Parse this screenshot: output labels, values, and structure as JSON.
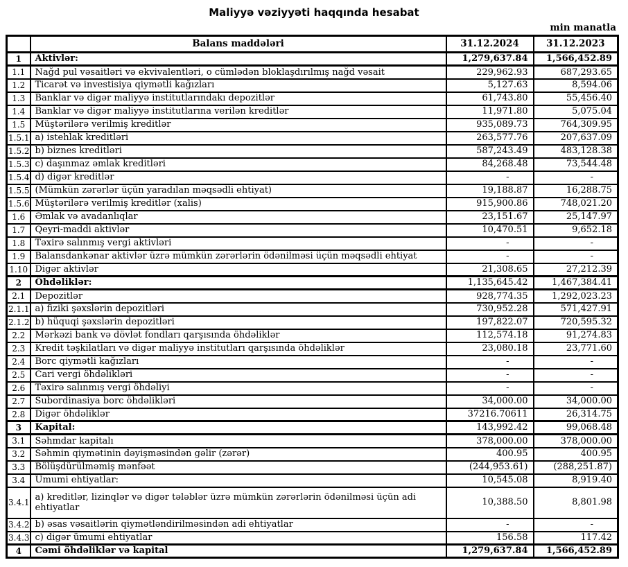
{
  "title": "Maliyyə vəziyyəti haqqında hesabat",
  "unit_note": "min manatla",
  "colors": {
    "text": "#000000",
    "border": "#000000",
    "background": "#ffffff"
  },
  "table": {
    "headers": {
      "num": "",
      "item": "Balans maddələri",
      "col2024": "31.12.2024",
      "col2023": "31.12.2023"
    },
    "rows": [
      {
        "num": "1",
        "item": "Aktivlər:",
        "v2024": "1,279,637.84",
        "v2023": "1,566,452.89",
        "style": "section bold-vals"
      },
      {
        "num": "1.1",
        "item": "Nağd pul vəsaitləri və ekvivalentləri, o cümlədən bloklaşdırılmış nağd vəsait",
        "v2024": "229,962.93",
        "v2023": "687,293.65",
        "style": ""
      },
      {
        "num": "1.2",
        "item": "Ticarət və investisiya qiymətli kağızları",
        "v2024": "5,127.63",
        "v2023": "8,594.06",
        "style": ""
      },
      {
        "num": "1.3",
        "item": "Banklar və digər maliyyə institutlarındakı depozitlər",
        "v2024": "61,743.80",
        "v2023": "55,456.40",
        "style": ""
      },
      {
        "num": "1.4",
        "item": "Banklar və digər maliyyə institutlarına verilən kreditlər",
        "v2024": "11,971.80",
        "v2023": "5,075.04",
        "style": ""
      },
      {
        "num": "1.5",
        "item": "Müştərilərə verilmiş kreditlər",
        "v2024": "935,089.73",
        "v2023": "764,309.95",
        "style": ""
      },
      {
        "num": "1.5.1",
        "item": "a) istehlak kreditləri",
        "v2024": "263,577.76",
        "v2023": "207,637.09",
        "style": ""
      },
      {
        "num": "1.5.2",
        "item": "b) biznes kreditləri",
        "v2024": "587,243.49",
        "v2023": "483,128.38",
        "style": ""
      },
      {
        "num": "1.5.3",
        "item": "c) daşınmaz əmlak kreditləri",
        "v2024": "84,268.48",
        "v2023": "73,544.48",
        "style": ""
      },
      {
        "num": "1.5.4",
        "item": "d) digər kreditlər",
        "v2024": "-",
        "v2023": "-",
        "style": ""
      },
      {
        "num": "1.5.5",
        "item": "(Mümkün zərərlər üçün yaradılan məqsədli ehtiyat)",
        "v2024": "19,188.87",
        "v2023": "16,288.75",
        "style": ""
      },
      {
        "num": "1.5.6",
        "item": "Müştərilərə verilmiş kreditlər (xalis)",
        "v2024": "915,900.86",
        "v2023": "748,021.20",
        "style": ""
      },
      {
        "num": "1.6",
        "item": "Əmlak və avadanlıqlar",
        "v2024": "23,151.67",
        "v2023": "25,147.97",
        "style": ""
      },
      {
        "num": "1.7",
        "item": "Qeyri-maddi aktivlər",
        "v2024": "10,470.51",
        "v2023": "9,652.18",
        "style": ""
      },
      {
        "num": "1.8",
        "item": "Təxirə salınmış vergi aktivləri",
        "v2024": "-",
        "v2023": "-",
        "style": ""
      },
      {
        "num": "1.9",
        "item": "Balansdankənar aktivlər üzrə mümkün zərərlərin ödənilməsi üçün məqsədli ehtiyat",
        "v2024": "-",
        "v2023": "-",
        "style": ""
      },
      {
        "num": "1.10",
        "item": "Digər aktivlər",
        "v2024": "21,308.65",
        "v2023": "27,212.39",
        "style": ""
      },
      {
        "num": "2",
        "item": "Öhdəliklər:",
        "v2024": "1,135,645.42",
        "v2023": "1,467,384.41",
        "style": "section"
      },
      {
        "num": "2.1",
        "item": "Depozitlər",
        "v2024": "928,774.35",
        "v2023": "1,292,023.23",
        "style": ""
      },
      {
        "num": "2.1.1",
        "item": "a) fiziki şəxslərin depozitləri",
        "v2024": "730,952.28",
        "v2023": "571,427.91",
        "style": ""
      },
      {
        "num": "2.1.2",
        "item": "b) hüquqi şəxslərin depozitləri",
        "v2024": "197,822.07",
        "v2023": "720,595.32",
        "style": ""
      },
      {
        "num": "2.2",
        "item": "Mərkəzi bank və dövlət fondları qarşısında öhdəliklər",
        "v2024": "112,574.18",
        "v2023": "91,274.83",
        "style": ""
      },
      {
        "num": "2.3",
        "item": "Kredit təşkilatları və digər maliyyə institutları qarşısında öhdəliklər",
        "v2024": "23,080.18",
        "v2023": "23,771.60",
        "style": ""
      },
      {
        "num": "2.4",
        "item": "Borc qiymətli kağızları",
        "v2024": "-",
        "v2023": "-",
        "style": ""
      },
      {
        "num": "2.5",
        "item": "Cari vergi öhdəlikləri",
        "v2024": "-",
        "v2023": "-",
        "style": ""
      },
      {
        "num": "2.6",
        "item": "Təxirə salınmış vergi öhdəliyi",
        "v2024": "-",
        "v2023": "-",
        "style": ""
      },
      {
        "num": "2.7",
        "item": "Subordinasiya borc öhdəlikləri",
        "v2024": "34,000.00",
        "v2023": "34,000.00",
        "style": ""
      },
      {
        "num": "2.8",
        "item": "Digər öhdəliklər",
        "v2024": "37216.70611",
        "v2023": "26,314.75",
        "style": ""
      },
      {
        "num": "3",
        "item": "Kapital:",
        "v2024": "143,992.42",
        "v2023": "99,068.48",
        "style": "section"
      },
      {
        "num": "3.1",
        "item": "Səhmdar kapitalı",
        "v2024": "378,000.00",
        "v2023": "378,000.00",
        "style": ""
      },
      {
        "num": "3.2",
        "item": "Səhmin qiymətinin dəyişməsindən gəlir (zərər)",
        "v2024": "400.95",
        "v2023": "400.95",
        "style": ""
      },
      {
        "num": "3.3",
        "item": "Bölüşdürülməmiş mənfəət",
        "v2024": "(244,953.61)",
        "v2023": "(288,251.87)",
        "style": ""
      },
      {
        "num": "3.4",
        "item": "Ümumi ehtiyatlar:",
        "v2024": "10,545.08",
        "v2023": "8,919.40",
        "style": ""
      },
      {
        "num": "3.4.1",
        "item": "a) kreditlər, lizinqlər və digər tələblər üzrə mümkün zərərlərin ödənilməsi üçün adi ehtiyatlar",
        "v2024": "10,388.50",
        "v2023": "8,801.98",
        "style": "tall"
      },
      {
        "num": "3.4.2",
        "item": "b) əsas vəsaitlərin qiymətləndirilməsindən adi ehtiyatlar",
        "v2024": "-",
        "v2023": "-",
        "style": ""
      },
      {
        "num": "3.4.3",
        "item": "c) digər ümumi ehtiyatlar",
        "v2024": "156.58",
        "v2023": "117.42",
        "style": ""
      },
      {
        "num": "4",
        "item": "Cəmi öhdəliklər və kapital",
        "v2024": "1,279,637.84",
        "v2023": "1,566,452.89",
        "style": "section bold-vals"
      }
    ]
  }
}
